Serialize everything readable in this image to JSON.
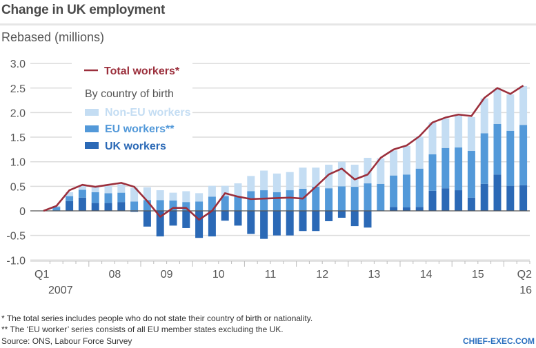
{
  "header": {
    "title": "Change in UK employment",
    "subtitle": "Rebased (millions)"
  },
  "legend": {
    "total_label": "Total workers*",
    "group_heading": "By country of birth",
    "non_eu_label": "Non-EU workers",
    "eu_label": "EU workers**",
    "uk_label": "UK workers"
  },
  "colors": {
    "total": "#9b2f3c",
    "non_eu": "#c4ddf3",
    "eu": "#5399d9",
    "uk": "#2b69b6",
    "grid": "#dcdcdc",
    "zero": "#555555"
  },
  "footer": {
    "note1": "* The total series includes people who do not state their country of birth or nationality.",
    "note2": "** The ‘EU worker’ series consists of all EU member states excluding the UK.",
    "source": "Source: ONS, Labour Force Survey",
    "brand": "CHIEF-EXEC.COM"
  },
  "chart_data": {
    "type": "bar",
    "stacked": true,
    "title": "Change in UK employment",
    "ylabel": "Rebased (millions)",
    "xlabel": "",
    "ylim": [
      -1.0,
      3.0
    ],
    "yticks": [
      3.0,
      2.5,
      2.0,
      1.5,
      1.0,
      0.5,
      0,
      -0.5,
      -1.0
    ],
    "ytick_labels": [
      "3.0",
      "2.5",
      "2.0",
      "1.5",
      "1.0",
      "0.5",
      "0",
      "-0.5",
      "-1.0"
    ],
    "grid": true,
    "legend_position": "top-left",
    "x_tick_labels": [
      {
        "index": 0,
        "line1": "Q1",
        "line2": "2007"
      },
      {
        "index": 5.5,
        "line1": "08",
        "line2": ""
      },
      {
        "index": 9.5,
        "line1": "09",
        "line2": ""
      },
      {
        "index": 13.5,
        "line1": "10",
        "line2": ""
      },
      {
        "index": 17.5,
        "line1": "11",
        "line2": ""
      },
      {
        "index": 21.5,
        "line1": "12",
        "line2": ""
      },
      {
        "index": 25.5,
        "line1": "13",
        "line2": ""
      },
      {
        "index": 29.5,
        "line1": "14",
        "line2": ""
      },
      {
        "index": 33.5,
        "line1": "15",
        "line2": ""
      },
      {
        "index": 37,
        "line1": "Q2",
        "line2": "16"
      }
    ],
    "categories": [
      "2007Q1",
      "2007Q2",
      "2007Q3",
      "2007Q4",
      "2008Q1",
      "2008Q2",
      "2008Q3",
      "2008Q4",
      "2009Q1",
      "2009Q2",
      "2009Q3",
      "2009Q4",
      "2010Q1",
      "2010Q2",
      "2010Q3",
      "2010Q4",
      "2011Q1",
      "2011Q2",
      "2011Q3",
      "2011Q4",
      "2012Q1",
      "2012Q2",
      "2012Q3",
      "2012Q4",
      "2013Q1",
      "2013Q2",
      "2013Q3",
      "2013Q4",
      "2014Q1",
      "2014Q2",
      "2014Q3",
      "2014Q4",
      "2015Q1",
      "2015Q2",
      "2015Q3",
      "2015Q4",
      "2016Q1",
      "2016Q2"
    ],
    "series": [
      {
        "name": "UK workers",
        "kind": "bar",
        "values": [
          0,
          0,
          0.2,
          0.27,
          0.16,
          0.16,
          0.18,
          -0.02,
          -0.32,
          -0.52,
          -0.3,
          -0.35,
          -0.55,
          -0.52,
          -0.2,
          -0.3,
          -0.47,
          -0.57,
          -0.5,
          -0.5,
          -0.41,
          -0.41,
          -0.21,
          -0.14,
          -0.31,
          -0.34,
          0,
          0.08,
          0.07,
          0.08,
          0.41,
          0.46,
          0.42,
          0.27,
          0.55,
          0.74,
          0.51,
          0.52
        ]
      },
      {
        "name": "EU workers**",
        "kind": "bar",
        "values": [
          0,
          0.08,
          0.1,
          0.16,
          0.22,
          0.2,
          0.19,
          0.19,
          0.22,
          0.22,
          0.21,
          0.18,
          0.19,
          0.29,
          0.3,
          0.29,
          0.4,
          0.42,
          0.38,
          0.42,
          0.45,
          0.49,
          0.46,
          0.5,
          0.49,
          0.56,
          0.55,
          0.64,
          0.67,
          0.78,
          0.74,
          0.82,
          0.87,
          0.95,
          1.03,
          1.03,
          1.12,
          1.23
        ]
      },
      {
        "name": "Non-EU workers",
        "kind": "bar",
        "values": [
          0,
          0.02,
          0.08,
          0.08,
          0.1,
          0.15,
          0.17,
          0.28,
          0.26,
          0.2,
          0.16,
          0.22,
          0.17,
          0.22,
          0.21,
          0.27,
          0.31,
          0.4,
          0.38,
          0.37,
          0.43,
          0.39,
          0.48,
          0.5,
          0.45,
          0.52,
          0.52,
          0.51,
          0.58,
          0.65,
          0.65,
          0.6,
          0.65,
          0.69,
          0.71,
          0.71,
          0.74,
          0.79
        ]
      },
      {
        "name": "Total workers*",
        "kind": "line",
        "values": [
          0,
          0.1,
          0.42,
          0.53,
          0.49,
          0.53,
          0.57,
          0.49,
          0.2,
          -0.12,
          0.06,
          0.06,
          -0.18,
          0.0,
          0.36,
          0.29,
          0.24,
          0.25,
          0.26,
          0.27,
          0.25,
          0.49,
          0.74,
          0.86,
          0.64,
          0.74,
          1.08,
          1.25,
          1.33,
          1.52,
          1.8,
          1.9,
          1.96,
          1.93,
          2.3,
          2.5,
          2.38,
          2.55
        ]
      }
    ]
  }
}
